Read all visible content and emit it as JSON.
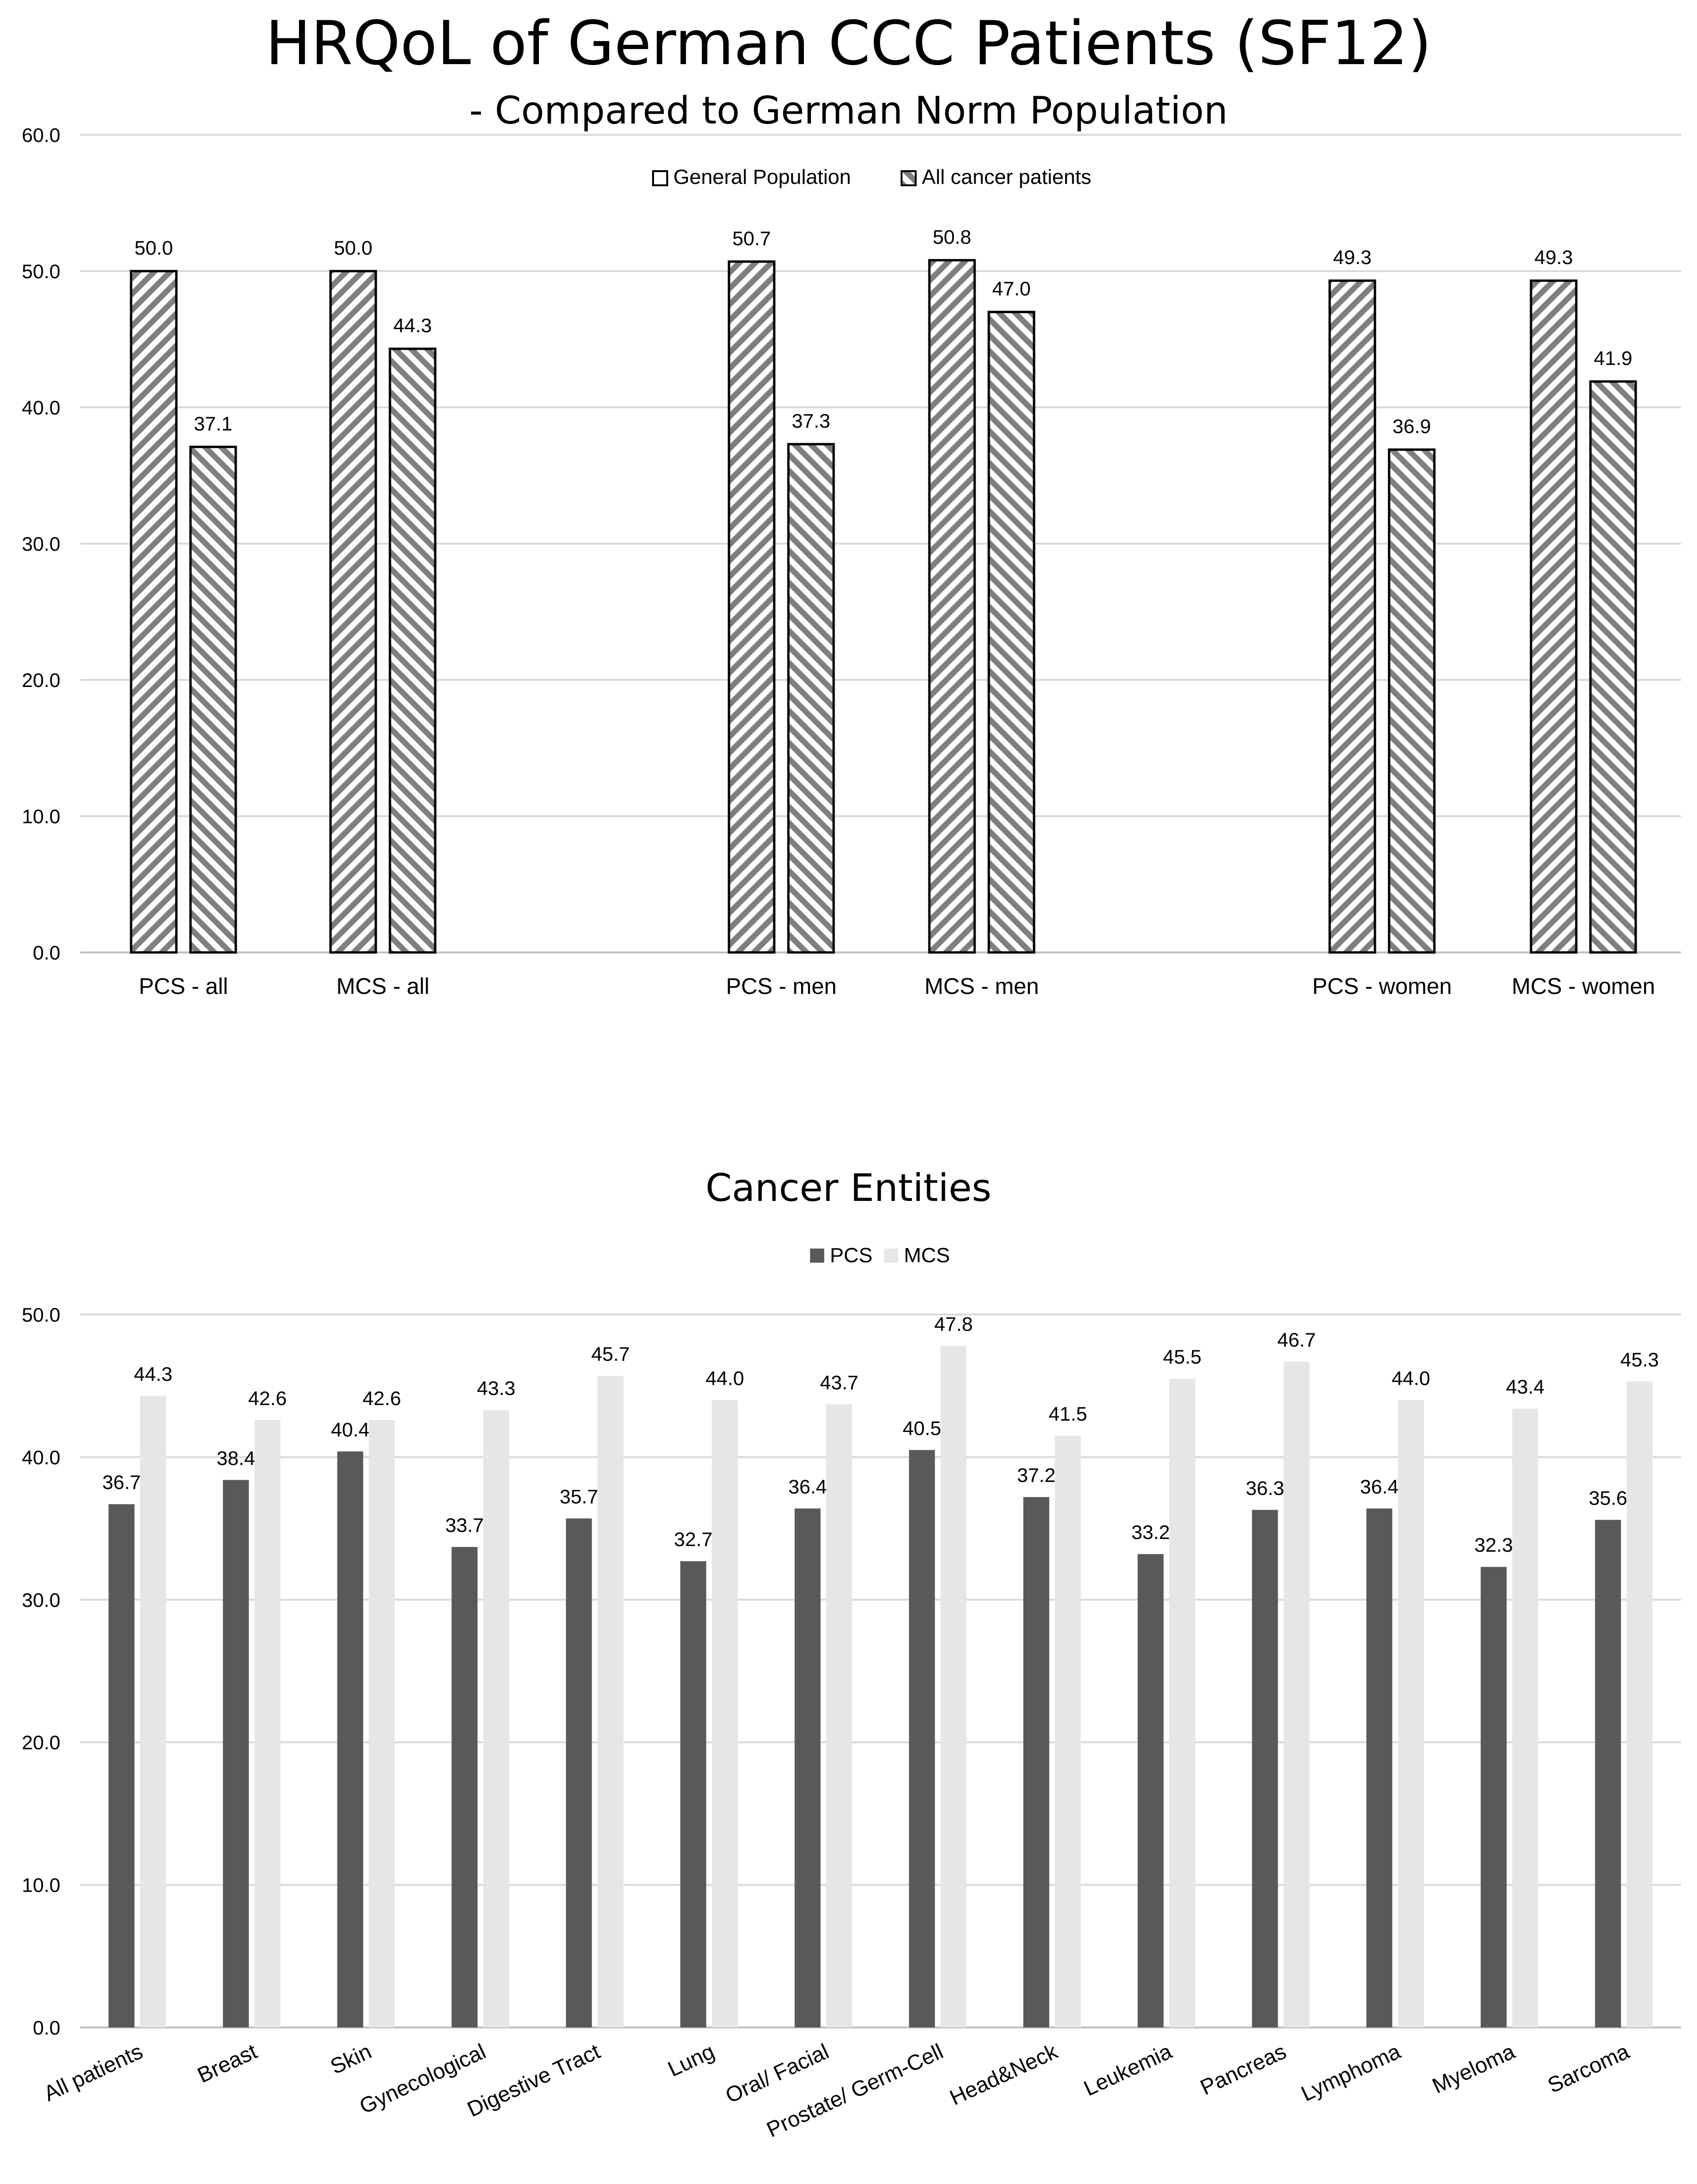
{
  "chart_data": [
    {
      "type": "bar",
      "title": "HRQoL of German CCC Patients (SF12)",
      "subtitle": "- Compared to German Norm Population",
      "categories": [
        "PCS - all",
        "MCS - all",
        "PCS - men",
        "MCS - men",
        "PCS - women",
        "MCS - women"
      ],
      "series": [
        {
          "name": "General Population",
          "values": [
            50.0,
            50.0,
            50.7,
            50.8,
            49.3,
            49.3
          ]
        },
        {
          "name": "All cancer patients",
          "values": [
            37.1,
            44.3,
            37.3,
            47.0,
            36.9,
            41.9
          ]
        }
      ],
      "value_labels": [
        [
          "50.0",
          "50.0",
          "50.7",
          "50.8",
          "49.3",
          "49.3"
        ],
        [
          "37.1",
          "44.3",
          "37.3",
          "47.0",
          "36.9",
          "41.9"
        ]
      ],
      "ylim": [
        0,
        60
      ],
      "yticks": [
        "0.0",
        "10.0",
        "20.0",
        "30.0",
        "40.0",
        "50.0",
        "60.0"
      ],
      "xlabel": "",
      "ylabel": "",
      "grid": true,
      "legend": "top-center"
    },
    {
      "type": "bar",
      "title": "Cancer Entities",
      "categories": [
        "All patients",
        "Breast",
        "Skin",
        "Gynecological",
        "Digestive Tract",
        "Lung",
        "Oral/ Facial",
        "Prostate/ Germ-Cell",
        "Head&Neck",
        "Leukemia",
        "Pancreas",
        "Lymphoma",
        "Myeloma",
        "Sarcoma"
      ],
      "series": [
        {
          "name": "PCS",
          "values": [
            36.7,
            38.4,
            40.4,
            33.7,
            35.7,
            32.7,
            36.4,
            40.5,
            37.2,
            33.2,
            36.3,
            36.4,
            32.3,
            35.6
          ]
        },
        {
          "name": "MCS",
          "values": [
            44.3,
            42.6,
            42.6,
            43.3,
            45.7,
            44.0,
            43.7,
            47.8,
            41.5,
            45.5,
            46.7,
            44.0,
            43.4,
            45.3
          ]
        }
      ],
      "value_labels": [
        [
          "36.7",
          "38.4",
          "40.4",
          "33.7",
          "35.7",
          "32.7",
          "36.4",
          "40.5",
          "37.2",
          "33.2",
          "36.3",
          "36.4",
          "32.3",
          "35.6"
        ],
        [
          "44.3",
          "42.6",
          "42.6",
          "43.3",
          "45.7",
          "44.0",
          "43.7",
          "47.8",
          "41.5",
          "45.5",
          "46.7",
          "44.0",
          "43.4",
          "45.3"
        ]
      ],
      "ylim": [
        0,
        50
      ],
      "yticks": [
        "0.0",
        "10.0",
        "20.0",
        "30.0",
        "40.0",
        "50.0"
      ],
      "xlabel": "",
      "ylabel": "",
      "grid": true,
      "legend": "top-center"
    }
  ],
  "colors": {
    "grid": "#d9d9d9",
    "axis": "#bfbfbf",
    "hatch_dark": "#7f7f7f",
    "pcs": "#595959",
    "mcs": "#e7e6e6"
  }
}
